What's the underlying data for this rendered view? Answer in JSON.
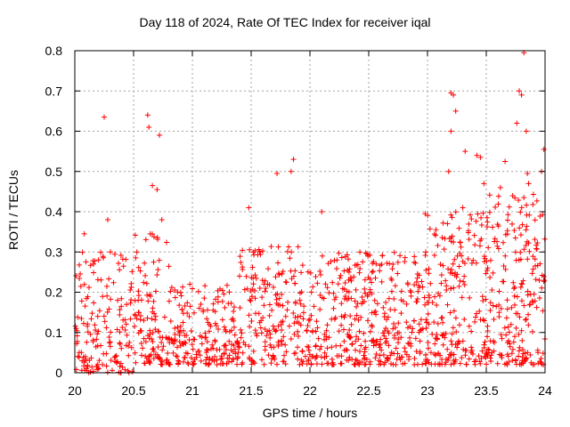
{
  "chart_data": {
    "type": "scatter",
    "title": "Day 118 of 2024, Rate Of TEC Index for receiver iqal",
    "xlabel": "GPS time / hours",
    "ylabel": "ROTI / TECUs",
    "xlim": [
      20,
      24
    ],
    "ylim": [
      0,
      0.8
    ],
    "xticks": [
      "20",
      "20.5",
      "21",
      "21.5",
      "22",
      "22.5",
      "23",
      "23.5",
      "24"
    ],
    "yticks": [
      "0",
      "0.1",
      "0.2",
      "0.3",
      "0.4",
      "0.5",
      "0.6",
      "0.7",
      "0.8"
    ],
    "grid": true,
    "marker": "+",
    "color": "#ff0000",
    "highlights": [
      {
        "x": 20.25,
        "y": 0.635
      },
      {
        "x": 20.62,
        "y": 0.64
      },
      {
        "x": 20.63,
        "y": 0.61
      },
      {
        "x": 20.72,
        "y": 0.59
      },
      {
        "x": 20.66,
        "y": 0.465
      },
      {
        "x": 20.7,
        "y": 0.455
      },
      {
        "x": 20.28,
        "y": 0.38
      },
      {
        "x": 20.74,
        "y": 0.38
      },
      {
        "x": 20.08,
        "y": 0.345
      },
      {
        "x": 21.48,
        "y": 0.41
      },
      {
        "x": 21.72,
        "y": 0.495
      },
      {
        "x": 21.86,
        "y": 0.53
      },
      {
        "x": 21.84,
        "y": 0.5
      },
      {
        "x": 22.1,
        "y": 0.4
      },
      {
        "x": 22.98,
        "y": 0.395
      },
      {
        "x": 23.2,
        "y": 0.695
      },
      {
        "x": 23.22,
        "y": 0.69
      },
      {
        "x": 23.2,
        "y": 0.6
      },
      {
        "x": 23.24,
        "y": 0.65
      },
      {
        "x": 23.32,
        "y": 0.55
      },
      {
        "x": 23.42,
        "y": 0.54
      },
      {
        "x": 23.45,
        "y": 0.535
      },
      {
        "x": 23.48,
        "y": 0.47
      },
      {
        "x": 23.66,
        "y": 0.525
      },
      {
        "x": 23.62,
        "y": 0.46
      },
      {
        "x": 23.78,
        "y": 0.7
      },
      {
        "x": 23.8,
        "y": 0.69
      },
      {
        "x": 23.82,
        "y": 0.795
      },
      {
        "x": 23.84,
        "y": 0.6
      },
      {
        "x": 23.76,
        "y": 0.62
      },
      {
        "x": 23.99,
        "y": 0.555
      },
      {
        "x": 23.97,
        "y": 0.5
      },
      {
        "x": 23.18,
        "y": 0.5
      },
      {
        "x": 23.3,
        "y": 0.41
      },
      {
        "x": 23.85,
        "y": 0.495
      },
      {
        "x": 23.86,
        "y": 0.47
      }
    ],
    "clusters": [
      {
        "x0": 20.0,
        "x1": 20.5,
        "ymin": 0.0,
        "ymax": 0.3,
        "count": 160
      },
      {
        "x0": 20.5,
        "x1": 20.8,
        "ymin": 0.02,
        "ymax": 0.35,
        "count": 110
      },
      {
        "x0": 20.8,
        "x1": 21.4,
        "ymin": 0.02,
        "ymax": 0.22,
        "count": 200
      },
      {
        "x0": 21.4,
        "x1": 21.9,
        "ymin": 0.02,
        "ymax": 0.32,
        "count": 170
      },
      {
        "x0": 21.9,
        "x1": 22.3,
        "ymin": 0.02,
        "ymax": 0.3,
        "count": 130
      },
      {
        "x0": 22.3,
        "x1": 23.0,
        "ymin": 0.02,
        "ymax": 0.3,
        "count": 280
      },
      {
        "x0": 23.0,
        "x1": 23.5,
        "ymin": 0.02,
        "ymax": 0.4,
        "count": 200
      },
      {
        "x0": 23.5,
        "x1": 24.0,
        "ymin": 0.02,
        "ymax": 0.45,
        "count": 220
      }
    ]
  }
}
